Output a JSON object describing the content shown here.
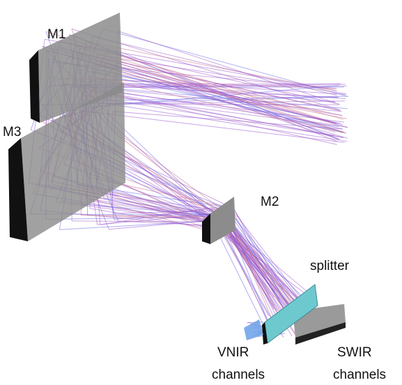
{
  "labels": {
    "m1": "M1",
    "m3": "M3",
    "m2": "M2",
    "splitter": "splitter",
    "vnir": [
      "VNIR",
      "channels"
    ],
    "swir": [
      "SWIR",
      "channels"
    ]
  }
}
